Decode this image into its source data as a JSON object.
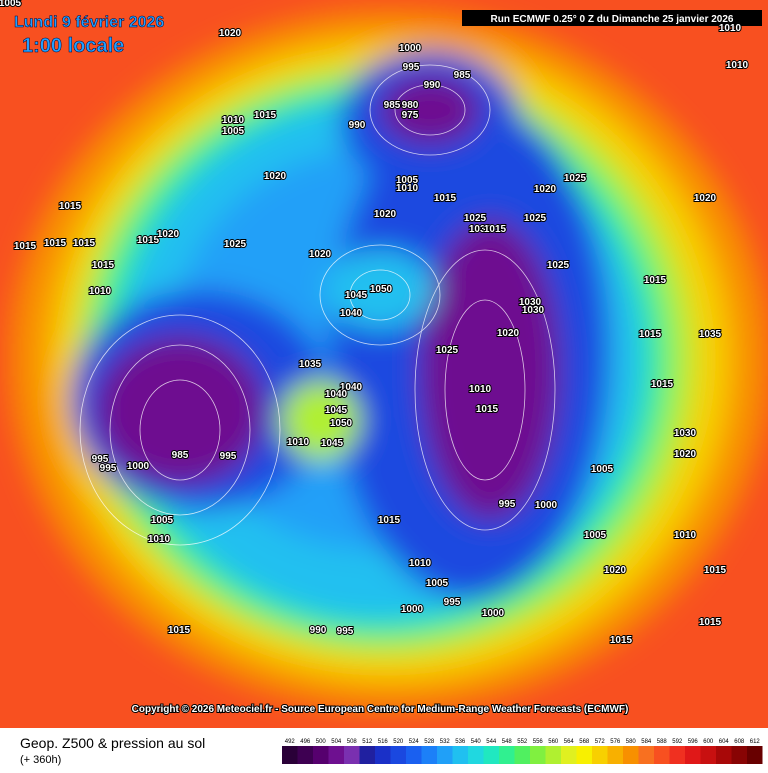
{
  "header": {
    "date": "Lundi 9 février 2026",
    "local_time": "1:00 locale",
    "run": "Run ECMWF 0.25° 0 Z du Dimanche 25 janvier 2026"
  },
  "copyright": "Copyright © 2026 Meteociel.fr - Source European Centre for Medium-Range Weather Forecasts (ECMWF)",
  "footer": {
    "title": "Geop. Z500 & pression au sol",
    "lead": "(+ 360h)"
  },
  "isobar_labels": [
    1005,
    1020,
    1000,
    995,
    985,
    990,
    985,
    980,
    975,
    990,
    1015,
    1010,
    1005,
    1020,
    1005,
    1010,
    1015,
    1020,
    1025,
    1030,
    1015,
    1025,
    1025,
    1020,
    1020,
    1015,
    1015,
    1015,
    1015,
    1015,
    1020,
    1025,
    1020,
    1015,
    1010,
    1045,
    1050,
    1040,
    1025,
    1030,
    1030,
    1020,
    1025,
    1010,
    1015,
    1035,
    1040,
    1040,
    1045,
    1050,
    1010,
    1045,
    985,
    995,
    995,
    995,
    1000,
    1005,
    1010,
    995,
    1000,
    1005,
    1015,
    1005,
    1010,
    1020,
    1005,
    995,
    1000,
    1000,
    990,
    995,
    1015,
    1015,
    1015,
    1030,
    1020,
    1010,
    1015,
    1010,
    1010,
    1015,
    1015,
    1035,
    1015
  ],
  "scale": {
    "values": [
      492,
      496,
      500,
      504,
      508,
      512,
      516,
      520,
      524,
      528,
      532,
      536,
      540,
      544,
      548,
      552,
      556,
      560,
      564,
      568,
      572,
      576,
      580,
      584,
      588,
      592,
      596,
      600,
      604,
      608,
      612
    ],
    "colors": [
      "#2a0038",
      "#3e0052",
      "#56006e",
      "#6e1090",
      "#7a30b0",
      "#2020a0",
      "#1a30c8",
      "#1a48e0",
      "#1a60f0",
      "#1c80f8",
      "#20a0f8",
      "#20c0f0",
      "#20d8e0",
      "#20e8c0",
      "#30f090",
      "#50f060",
      "#80f040",
      "#b0f030",
      "#e0f020",
      "#f8f000",
      "#f8d000",
      "#f8b000",
      "#f89000",
      "#f87020",
      "#f85020",
      "#f03020",
      "#e01818",
      "#c81010",
      "#a80808",
      "#880404",
      "#680000"
    ]
  }
}
